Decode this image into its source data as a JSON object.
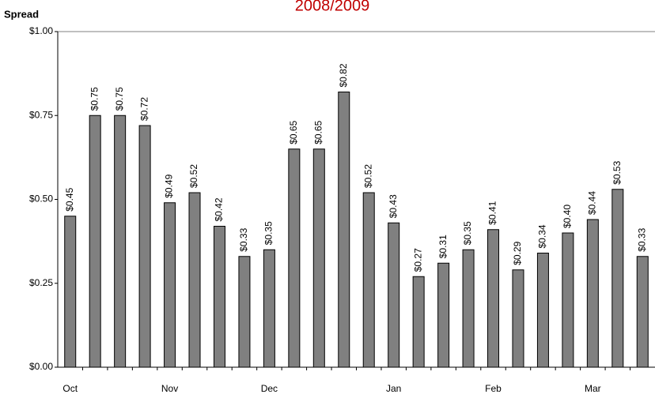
{
  "chart_data": {
    "type": "bar",
    "title": "2008/2009",
    "y_label": "Spread",
    "categories": [
      "Oct",
      null,
      null,
      null,
      "Nov",
      null,
      null,
      null,
      "Dec",
      null,
      null,
      null,
      null,
      "Jan",
      null,
      null,
      null,
      "Feb",
      null,
      null,
      null,
      "Mar",
      null,
      null
    ],
    "values": [
      0.45,
      0.75,
      0.75,
      0.72,
      0.49,
      0.52,
      0.42,
      0.33,
      0.35,
      0.65,
      0.65,
      0.82,
      0.52,
      0.43,
      0.27,
      0.31,
      0.35,
      0.41,
      0.29,
      0.34,
      0.4,
      0.44,
      0.53,
      0.33
    ],
    "value_labels": [
      "$0.45",
      "$0.75",
      "$0.75",
      "$0.72",
      "$0.49",
      "$0.52",
      "$0.42",
      "$0.33",
      "$0.35",
      "$0.65",
      "$0.65",
      "$0.82",
      "$0.52",
      "$0.43",
      "$0.27",
      "$0.31",
      "$0.35",
      "$0.41",
      "$0.29",
      "$0.34",
      "$0.40",
      "$0.44",
      "$0.53",
      "$0.33"
    ],
    "color": "#808080",
    "ylim": [
      0,
      1
    ],
    "yticks": [
      {
        "value": 0,
        "label": "$0.00"
      },
      {
        "value": 0.25,
        "label": "$0.25"
      },
      {
        "value": 0.5,
        "label": "$0.50"
      },
      {
        "value": 0.75,
        "label": "$0.75"
      },
      {
        "value": 1,
        "label": "$1.00"
      }
    ],
    "grid": false
  }
}
